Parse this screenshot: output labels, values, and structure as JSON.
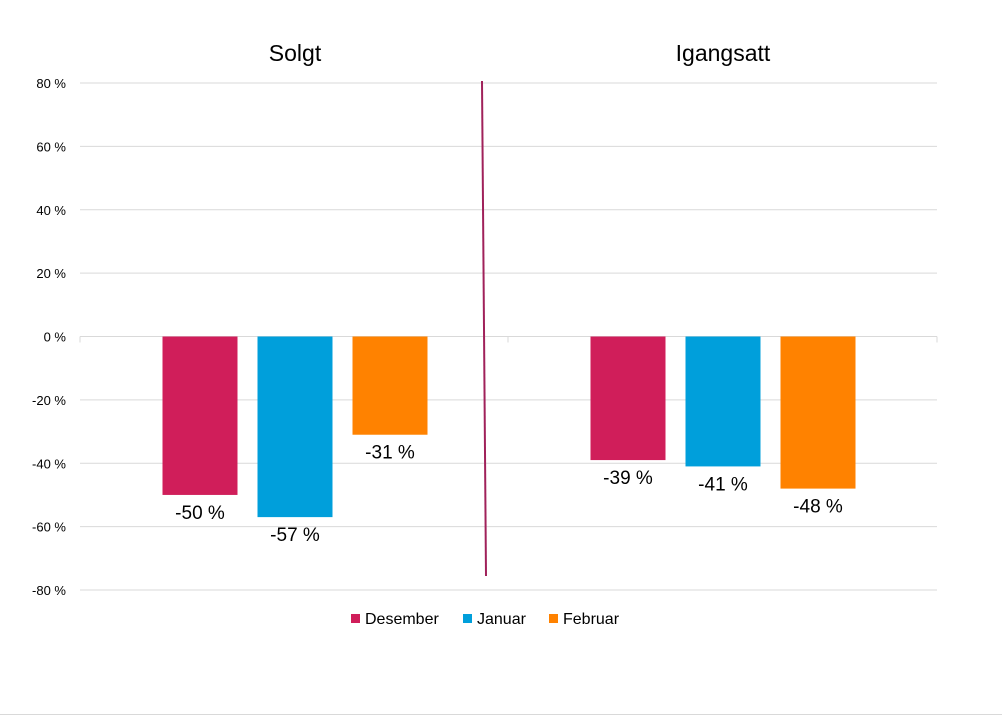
{
  "chart_data": {
    "type": "bar",
    "groups": [
      "Solgt",
      "Igangsatt"
    ],
    "categories": [
      "Solgt",
      "Igangsatt"
    ],
    "series": [
      {
        "name": "Desember",
        "color": "#D01E5A",
        "values": [
          -50,
          -39
        ],
        "labels": [
          "-50 %",
          "-39 %"
        ]
      },
      {
        "name": "Januar",
        "color": "#009FDB",
        "values": [
          -57,
          -41
        ],
        "labels": [
          "-57 %",
          "-41 %"
        ]
      },
      {
        "name": "Februar",
        "color": "#FF8200",
        "values": [
          -31,
          -48
        ],
        "labels": [
          "-31 %",
          "-48 %"
        ]
      }
    ],
    "ylim": [
      -80,
      80
    ],
    "yticks": [
      80,
      60,
      40,
      20,
      0,
      -20,
      -40,
      -60,
      -80
    ],
    "ytick_labels": [
      "80 %",
      "60 %",
      "40 %",
      "20 %",
      "0 %",
      "-20 %",
      "-40 %",
      "-60 %",
      "-80 %"
    ],
    "grid": true,
    "legend": "bottom",
    "divider_color": "#A0215A"
  }
}
